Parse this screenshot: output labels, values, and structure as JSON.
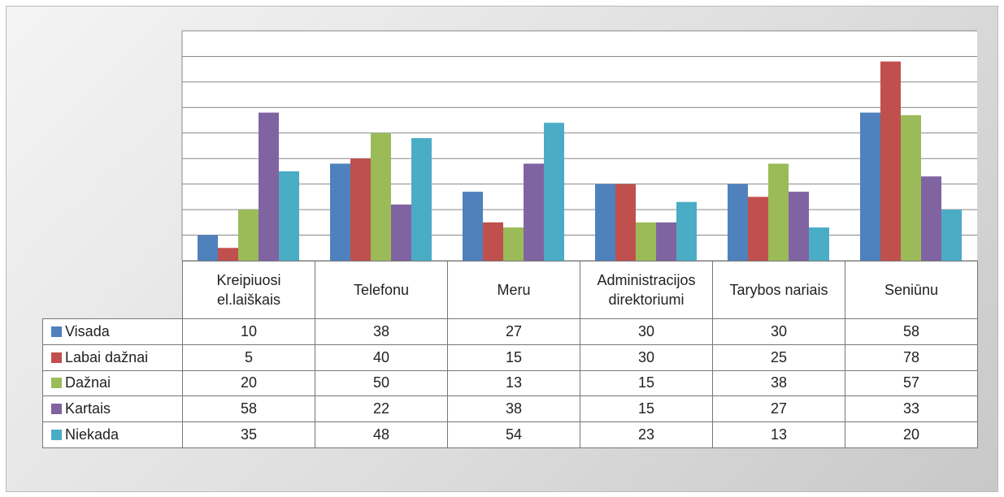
{
  "chart_data": {
    "type": "bar",
    "categories": [
      "Kreipiuosi el.laiškais",
      "Telefonu",
      "Meru",
      "Administracijos direktoriumi",
      "Tarybos nariais",
      "Seniūnu"
    ],
    "series": [
      {
        "name": "Visada",
        "color": "#4f81bd",
        "values": [
          10,
          38,
          27,
          30,
          30,
          58
        ]
      },
      {
        "name": "Labai dažnai",
        "color": "#c0504d",
        "values": [
          5,
          40,
          15,
          30,
          25,
          78
        ]
      },
      {
        "name": "Dažnai",
        "color": "#9bbb59",
        "values": [
          20,
          50,
          13,
          15,
          38,
          57
        ]
      },
      {
        "name": "Kartais",
        "color": "#8064a2",
        "values": [
          58,
          22,
          38,
          15,
          27,
          33
        ]
      },
      {
        "name": "Niekada",
        "color": "#4bacc6",
        "values": [
          35,
          48,
          54,
          23,
          13,
          20
        ]
      }
    ],
    "ylim": [
      0,
      90
    ],
    "yticks": [
      0,
      10,
      20,
      30,
      40,
      50,
      60,
      70,
      80,
      90
    ],
    "grid": true
  }
}
